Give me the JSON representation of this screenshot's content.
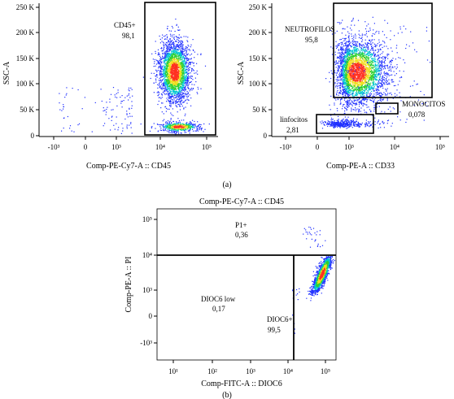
{
  "chart_data": [
    {
      "type": "scatter",
      "panel": "a-left",
      "title": "",
      "xlabel": "Comp-PE-Cy7-A :: CD45",
      "ylabel": "SSC-A",
      "x_scale": "biexponential",
      "x_ticks": [
        "-10³",
        "0",
        "10³",
        "10⁴",
        "10⁵"
      ],
      "y_ticks": [
        "0",
        "50 K",
        "100 K",
        "150 K",
        "200 K",
        "250 K"
      ],
      "ylim": [
        0,
        260000
      ],
      "gates": [
        {
          "name": "CD45+",
          "value": "98,1",
          "x_range": [
            5000,
            200000
          ],
          "y_range": [
            0,
            262000
          ]
        }
      ],
      "populations": [
        {
          "name": "CD45+ main cluster",
          "x_center": 20000,
          "y_center": 125000,
          "color_scale": "density"
        },
        {
          "name": "CD45+ low SSC cluster",
          "x_center": 25000,
          "y_center": 20000
        },
        {
          "name": "CD45- debris",
          "x_center": 300,
          "y_center": 40000
        }
      ]
    },
    {
      "type": "scatter",
      "panel": "a-right",
      "title": "",
      "xlabel": "Comp-PE-A :: CD33",
      "ylabel": "SSC-A",
      "x_scale": "biexponential",
      "x_ticks": [
        "-10³",
        "0",
        "10³",
        "10⁴",
        "10⁵"
      ],
      "y_ticks": [
        "0",
        "50 K",
        "100 K",
        "150 K",
        "200 K",
        "250 K"
      ],
      "ylim": [
        0,
        260000
      ],
      "gates": [
        {
          "name": "NEUTROFILOS",
          "value": "95,8",
          "x_range": [
            200,
            100000
          ],
          "y_range": [
            75000,
            260000
          ]
        },
        {
          "name": "MONOCITOS",
          "value": "0,078",
          "x_range": [
            5000,
            10000
          ],
          "y_range": [
            40000,
            62000
          ]
        },
        {
          "name": "linfocitos",
          "value": "2,81",
          "x_range": [
            -500,
            4000
          ],
          "y_range": [
            5000,
            40000
          ]
        }
      ],
      "populations": [
        {
          "name": "neutrophils",
          "x_center": 1500,
          "y_center": 125000,
          "color_scale": "density"
        },
        {
          "name": "lymphocytes",
          "x_center": 500,
          "y_center": 25000
        }
      ]
    },
    {
      "type": "scatter",
      "panel": "b",
      "title": "Comp-PE-Cy7-A :: CD45",
      "xlabel": "Comp-FITC-A :: DIOC6",
      "ylabel": "Comp-PE-A :: PI",
      "x_scale": "biexponential",
      "y_scale": "biexponential",
      "x_ticks": [
        "10¹",
        "10²",
        "10³",
        "10⁴",
        "10⁵"
      ],
      "y_ticks": [
        "-10³",
        "0",
        "10³",
        "10⁴",
        "10⁵"
      ],
      "gates": [
        {
          "name": "P1+",
          "value": "0,36",
          "x_range": [
            10,
            300000
          ],
          "y_range": [
            10000,
            300000
          ]
        },
        {
          "name": "DIOC6 low",
          "value": "0,17",
          "x_range": [
            10,
            20000
          ],
          "y_range": [
            -1000,
            10000
          ]
        },
        {
          "name": "DIOC6+",
          "value": "99,5",
          "x_range": [
            20000,
            300000
          ],
          "y_range": [
            -1000,
            10000
          ]
        }
      ],
      "populations": [
        {
          "name": "DIOC6+ cluster",
          "x_center": 80000,
          "y_center": 3000,
          "color_scale": "density"
        },
        {
          "name": "PI+ events",
          "x_center": 40000,
          "y_center": 50000
        }
      ]
    }
  ],
  "figure": {
    "panel_a_label": "(a)",
    "panel_b_label": "(b)"
  },
  "colors": {
    "low_density": "#2030ff",
    "mid_density": "#00c8d0",
    "higher_density": "#30d030",
    "high_density": "#f0e020",
    "peak_density": "#ff3020",
    "gate": "#000000"
  }
}
